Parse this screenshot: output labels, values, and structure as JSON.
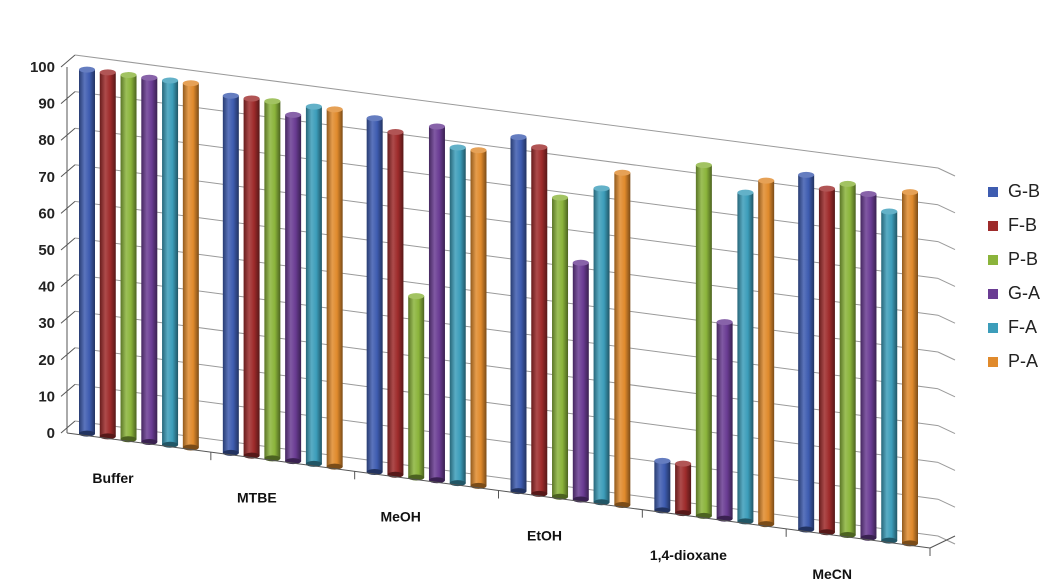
{
  "chart_data": {
    "type": "bar",
    "style": "3d-cylinder",
    "categories": [
      "Buffer",
      "MTBE",
      "MeOH",
      "EtOH",
      "1,4-dioxane",
      "MeCN"
    ],
    "series": [
      {
        "name": "G-B",
        "color": "#3E5CB0",
        "values": [
          100,
          98,
          97,
          97,
          14,
          97
        ]
      },
      {
        "name": "F-B",
        "color": "#9E2B2B",
        "values": [
          100,
          98,
          94,
          95,
          14,
          94
        ]
      },
      {
        "name": "P-B",
        "color": "#8BB43B",
        "values": [
          100,
          98,
          50,
          82,
          96,
          96
        ]
      },
      {
        "name": "G-A",
        "color": "#6A3C93",
        "values": [
          100,
          95,
          97,
          65,
          54,
          94
        ]
      },
      {
        "name": "F-A",
        "color": "#3C9DBA",
        "values": [
          100,
          98,
          92,
          86,
          90,
          90
        ]
      },
      {
        "name": "P-A",
        "color": "#E08A2C",
        "values": [
          100,
          98,
          92,
          91,
          94,
          96
        ]
      }
    ],
    "y_ticks": [
      "0",
      "10",
      "20",
      "30",
      "40",
      "50",
      "60",
      "70",
      "80",
      "90",
      "100"
    ],
    "ylim": [
      0,
      100
    ],
    "xlabel": "",
    "ylabel": "",
    "title": "",
    "grid": true,
    "legend_position": "right"
  }
}
